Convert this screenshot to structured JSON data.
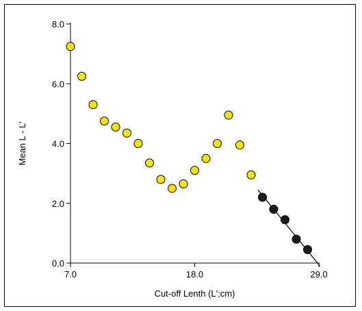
{
  "chart_data": {
    "type": "scatter",
    "title": "",
    "xlabel": "Cut-off Lenth (L';cm)",
    "ylabel": "Mean L - L'",
    "xlim": [
      7.0,
      29.5
    ],
    "ylim": [
      0.0,
      8.0
    ],
    "x_ticks": [
      7.0,
      18.0,
      29.0
    ],
    "x_tick_labels": [
      "7.0",
      "18.0",
      "29.0"
    ],
    "y_ticks": [
      0.0,
      2.0,
      4.0,
      6.0,
      8.0
    ],
    "y_tick_labels": [
      "0.0",
      "2.0",
      "4.0",
      "6.0",
      "8.0"
    ],
    "grid": false,
    "legend": "none",
    "series": [
      {
        "marker_color": "#f5e400",
        "points": [
          {
            "x": 7.0,
            "y": 7.25
          },
          {
            "x": 8.0,
            "y": 6.25
          },
          {
            "x": 9.0,
            "y": 5.3
          },
          {
            "x": 10.0,
            "y": 4.75
          },
          {
            "x": 11.0,
            "y": 4.55
          },
          {
            "x": 12.0,
            "y": 4.35
          },
          {
            "x": 13.0,
            "y": 4.0
          },
          {
            "x": 14.0,
            "y": 3.35
          },
          {
            "x": 15.0,
            "y": 2.8
          },
          {
            "x": 16.0,
            "y": 2.5
          },
          {
            "x": 17.0,
            "y": 2.65
          },
          {
            "x": 18.0,
            "y": 3.1
          },
          {
            "x": 19.0,
            "y": 3.5
          },
          {
            "x": 20.0,
            "y": 4.0
          },
          {
            "x": 21.0,
            "y": 4.95
          },
          {
            "x": 22.0,
            "y": 3.95
          },
          {
            "x": 23.0,
            "y": 2.95
          }
        ]
      },
      {
        "marker_color": "#1a1a1a",
        "points": [
          {
            "x": 24.0,
            "y": 2.2
          },
          {
            "x": 25.0,
            "y": 1.8
          },
          {
            "x": 26.0,
            "y": 1.45
          },
          {
            "x": 27.0,
            "y": 0.8
          },
          {
            "x": 28.0,
            "y": 0.45
          }
        ]
      }
    ],
    "fit_line": {
      "color": "#000000",
      "points": [
        {
          "x": 23.6,
          "y": 2.45
        },
        {
          "x": 29.1,
          "y": -0.1
        }
      ]
    }
  }
}
